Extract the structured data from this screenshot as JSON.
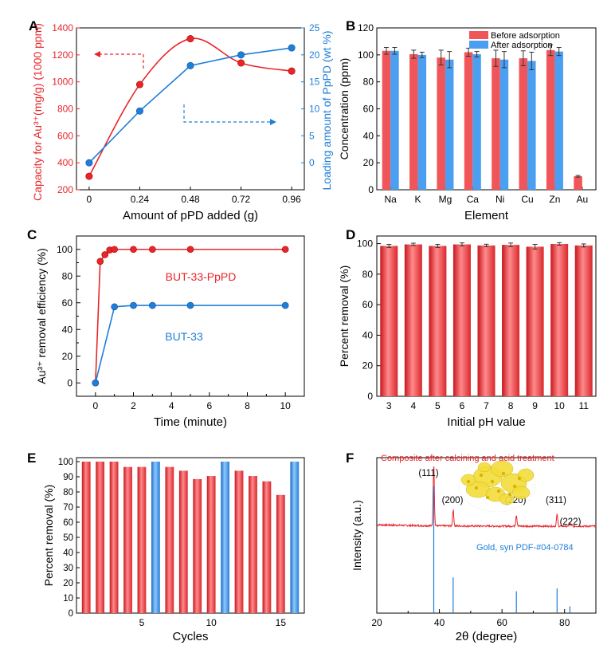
{
  "chart_data": [
    {
      "panel": "A",
      "type": "line",
      "xlabel": "Amount of pPD added (g)",
      "ylabel_left": "Capacity for Au³⁺(mg/g) (1000 ppm)",
      "ylabel_right": "Loading amount of PpPD (wt %)",
      "x_ticks": [
        "0",
        "0.24",
        "0.48",
        "0.72",
        "0.96"
      ],
      "x": [
        0,
        0.24,
        0.48,
        0.72,
        0.96
      ],
      "xlim": [
        -0.06,
        1.02
      ],
      "ylim_left": [
        200,
        1400
      ],
      "ylim_right": [
        -5,
        25
      ],
      "yticks_left": [
        200,
        400,
        600,
        800,
        1000,
        1200,
        1400
      ],
      "yticks_right": [
        0,
        5,
        10,
        15,
        20,
        25
      ],
      "series": [
        {
          "axis": "left",
          "color": "#e8262a",
          "values": [
            300,
            980,
            1320,
            1140,
            1080
          ]
        },
        {
          "axis": "right",
          "color": "#1f7fd8",
          "values": [
            0,
            9.6,
            18,
            20,
            21.3
          ]
        }
      ]
    },
    {
      "panel": "B",
      "type": "bar",
      "xlabel": "Element",
      "ylabel": "Concentration (ppm)",
      "categories": [
        "Na",
        "K",
        "Mg",
        "Ca",
        "Ni",
        "Cu",
        "Zn",
        "Au"
      ],
      "ylim": [
        0,
        120
      ],
      "yticks": [
        0,
        20,
        40,
        60,
        80,
        100,
        120
      ],
      "legend_position": "top-right",
      "series": [
        {
          "name": "Before adsorption",
          "color": "#f0555a",
          "values": [
            103,
            100.5,
            98,
            102,
            97.5,
            97.5,
            103.5,
            10
          ],
          "errors": [
            2.5,
            3,
            5.5,
            3,
            6,
            5.5,
            4,
            0.6
          ]
        },
        {
          "name": "After adsorption",
          "color": "#4a9ff0",
          "values": [
            103,
            100,
            96.5,
            100.5,
            96.5,
            95.5,
            102.5,
            null
          ],
          "errors": [
            2.5,
            2,
            6,
            2,
            6,
            6.5,
            3,
            null
          ]
        }
      ]
    },
    {
      "panel": "C",
      "type": "line",
      "xlabel": "Time (minute)",
      "ylabel": "Au³⁺ removal efficiency (%)",
      "xlim": [
        -1,
        11
      ],
      "ylim": [
        -10,
        110
      ],
      "xticks": [
        0,
        2,
        4,
        6,
        8,
        10
      ],
      "yticks": [
        0,
        20,
        40,
        60,
        80,
        100
      ],
      "series": [
        {
          "name": "BUT-33-PpPD",
          "color": "#e8262a",
          "x": [
            0,
            0.25,
            0.5,
            0.75,
            1,
            2,
            3,
            5,
            10
          ],
          "values": [
            0,
            91,
            96,
            99.5,
            100,
            100,
            100,
            100,
            100
          ]
        },
        {
          "name": "BUT-33",
          "color": "#1f7fd8",
          "x": [
            0,
            1,
            2,
            3,
            5,
            10
          ],
          "values": [
            0,
            57,
            58,
            58,
            58,
            58
          ]
        }
      ]
    },
    {
      "panel": "D",
      "type": "bar",
      "xlabel": "Initial pH value",
      "ylabel": "Percent removal (%)",
      "categories": [
        "3",
        "4",
        "5",
        "6",
        "7",
        "8",
        "9",
        "10",
        "11"
      ],
      "ylim": [
        0,
        105
      ],
      "yticks": [
        0,
        20,
        40,
        60,
        80,
        100
      ],
      "color": "#f0555a",
      "values": [
        98.5,
        99.5,
        98.5,
        99.5,
        98.8,
        99.2,
        98,
        99.8,
        98.8
      ],
      "errors": [
        1,
        0.8,
        1,
        1,
        0.8,
        1.2,
        1.5,
        0.8,
        1
      ]
    },
    {
      "panel": "E",
      "type": "bar",
      "xlabel": "Cycles",
      "ylabel": "Percent removal (%)",
      "x": [
        1,
        2,
        3,
        4,
        5,
        6,
        7,
        8,
        9,
        10,
        11,
        12,
        13,
        14,
        15,
        16
      ],
      "xlim": [
        0.3,
        16.7
      ],
      "xticks": [
        5,
        10,
        15
      ],
      "ylim": [
        0,
        100
      ],
      "yticks": [
        0,
        10,
        20,
        30,
        40,
        50,
        60,
        70,
        80,
        90,
        100
      ],
      "values": [
        100,
        100,
        100,
        96.5,
        96.5,
        100,
        96.5,
        94,
        88.5,
        90.5,
        100,
        94,
        90.5,
        87,
        78,
        100
      ],
      "colors": [
        "#f0555a",
        "#f0555a",
        "#f0555a",
        "#f0555a",
        "#f0555a",
        "#4a9ff0",
        "#f0555a",
        "#f0555a",
        "#f0555a",
        "#f0555a",
        "#4a9ff0",
        "#f0555a",
        "#f0555a",
        "#f0555a",
        "#f0555a",
        "#4a9ff0"
      ]
    },
    {
      "panel": "F",
      "type": "line",
      "xlabel": "2θ (degree)",
      "ylabel": "Intensity (a.u.)",
      "xlim": [
        20,
        90
      ],
      "xticks": [
        20,
        40,
        60,
        80
      ],
      "title_annotation": "Composite after calcining and acid treatment",
      "reference_label": "Gold, syn  PDF-#04-0784",
      "peaks": [
        {
          "label": "(111)",
          "x": 38.2,
          "height": 1.0
        },
        {
          "label": "(200)",
          "x": 44.4,
          "height": 0.32
        },
        {
          "label": "(220)",
          "x": 64.6,
          "height": 0.22
        },
        {
          "label": "(311)",
          "x": 77.6,
          "height": 0.23
        },
        {
          "label": "(222)",
          "x": 81.7,
          "height": 0.07
        }
      ],
      "reference_lines": [
        {
          "x": 38.2,
          "height": 1.0
        },
        {
          "x": 44.4,
          "height": 0.52
        },
        {
          "x": 64.6,
          "height": 0.32
        },
        {
          "x": 77.6,
          "height": 0.36
        },
        {
          "x": 81.7,
          "height": 0.1
        }
      ],
      "signal_color": "#e8262a",
      "reference_color": "#1f7fd8"
    }
  ]
}
